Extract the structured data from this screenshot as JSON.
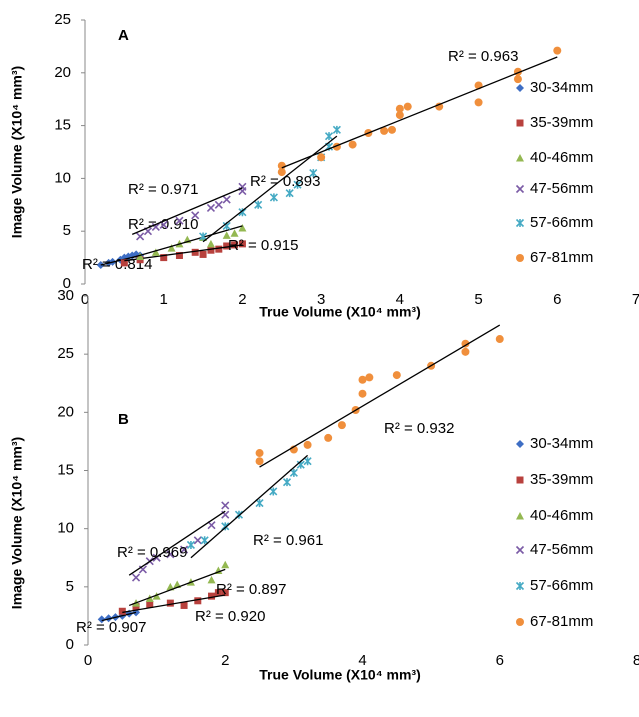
{
  "chart_data": [
    {
      "type": "scatter",
      "title": "A",
      "x_label": "True Volume (X10⁴ mm³)",
      "y_label": "Image Volume (X10⁴ mm³)",
      "xlim": [
        0,
        7
      ],
      "xticks": [
        0,
        1,
        2,
        3,
        4,
        5,
        6,
        7
      ],
      "ylim": [
        0,
        25
      ],
      "yticks": [
        0,
        5,
        10,
        15,
        20,
        25
      ],
      "grid": false,
      "legend": "right",
      "series": [
        {
          "name": "30-34mm",
          "color": "#3e6ec4",
          "marker": "diamond",
          "x": [
            0.2,
            0.3,
            0.35,
            0.45,
            0.5,
            0.55,
            0.6,
            0.65,
            0.7
          ],
          "y": [
            1.8,
            2.0,
            2.1,
            2.3,
            2.5,
            2.6,
            2.7,
            2.8,
            2.7
          ],
          "trendline": {
            "x": [
              0.2,
              0.7
            ],
            "y": [
              1.8,
              2.7
            ],
            "label": "R² = 0.814"
          }
        },
        {
          "name": "35-39mm",
          "color": "#b8413d",
          "marker": "square",
          "x": [
            0.5,
            0.7,
            1.0,
            1.2,
            1.4,
            1.5,
            1.6,
            1.7,
            1.8,
            1.9,
            2.0
          ],
          "y": [
            2.0,
            2.3,
            2.5,
            2.7,
            3.0,
            2.8,
            3.2,
            3.3,
            3.6,
            3.7,
            3.8
          ],
          "trendline": {
            "x": [
              0.5,
              2.0
            ],
            "y": [
              2.2,
              3.7
            ],
            "label": "R² = 0.915"
          }
        },
        {
          "name": "40-46mm",
          "color": "#94b852",
          "marker": "triangle",
          "x": [
            0.7,
            0.9,
            1.1,
            1.2,
            1.3,
            1.5,
            1.6,
            1.8,
            1.9,
            2.0
          ],
          "y": [
            2.6,
            3.0,
            3.4,
            3.8,
            4.2,
            4.4,
            3.8,
            4.6,
            4.8,
            5.3
          ],
          "trendline": {
            "x": [
              0.6,
              2.0
            ],
            "y": [
              2.5,
              5.5
            ],
            "label": "R² = 0.910"
          }
        },
        {
          "name": "47-56mm",
          "color": "#7b5ba6",
          "marker": "x",
          "x": [
            0.7,
            0.8,
            0.9,
            1.0,
            1.2,
            1.4,
            1.6,
            1.7,
            1.8,
            2.0,
            2.0
          ],
          "y": [
            4.5,
            5.0,
            5.4,
            5.6,
            6.0,
            6.5,
            7.2,
            7.5,
            8.0,
            8.8,
            9.2
          ],
          "trendline": {
            "x": [
              0.6,
              2.0
            ],
            "y": [
              4.7,
              9.1
            ],
            "label": "R² = 0.971"
          }
        },
        {
          "name": "57-66mm",
          "color": "#45aac4",
          "marker": "star",
          "x": [
            1.5,
            1.8,
            2.0,
            2.2,
            2.4,
            2.6,
            2.7,
            2.9,
            3.0,
            3.1,
            3.1,
            3.2
          ],
          "y": [
            4.5,
            5.5,
            6.8,
            7.5,
            8.2,
            8.6,
            9.4,
            10.5,
            12,
            13,
            14,
            14.6
          ],
          "trendline": {
            "x": [
              1.5,
              3.2
            ],
            "y": [
              4,
              14
            ],
            "label": "R² = 0.893"
          }
        },
        {
          "name": "67-81mm",
          "color": "#f08f3c",
          "marker": "circle",
          "x": [
            2.5,
            2.5,
            3.0,
            3.2,
            3.4,
            3.6,
            3.8,
            3.9,
            4.0,
            4.0,
            4.1,
            4.5,
            5.0,
            5.0,
            5.5,
            5.5,
            6.0
          ],
          "y": [
            10.6,
            11.2,
            12.0,
            13.0,
            13.2,
            14.3,
            14.5,
            14.6,
            16.0,
            16.6,
            16.8,
            16.8,
            17.2,
            18.8,
            19.4,
            20.1,
            22.1
          ],
          "trendline": {
            "x": [
              2.5,
              6.0
            ],
            "y": [
              11,
              21.5
            ],
            "label": "R² = 0.963"
          }
        }
      ]
    },
    {
      "type": "scatter",
      "title": "B",
      "x_label": "True Volume (X10⁴ mm³)",
      "y_label": "Image Volume (X10⁴ mm³)",
      "xlim": [
        0,
        8
      ],
      "xticks": [
        0,
        2,
        4,
        6,
        8
      ],
      "ylim": [
        0,
        30
      ],
      "yticks": [
        0,
        5,
        10,
        15,
        20,
        25,
        30
      ],
      "grid": false,
      "legend": "right",
      "series": [
        {
          "name": "30-34mm",
          "color": "#3e6ec4",
          "marker": "diamond",
          "x": [
            0.2,
            0.3,
            0.4,
            0.5,
            0.6,
            0.7
          ],
          "y": [
            2.2,
            2.3,
            2.4,
            2.5,
            2.7,
            2.8
          ],
          "trendline": {
            "x": [
              0.2,
              0.7
            ],
            "y": [
              2.1,
              2.8
            ],
            "label": "R² = 0.907"
          }
        },
        {
          "name": "35-39mm",
          "color": "#b8413d",
          "marker": "square",
          "x": [
            0.5,
            0.7,
            0.9,
            1.2,
            1.4,
            1.6,
            1.8,
            1.9,
            2.0
          ],
          "y": [
            2.9,
            3.3,
            3.5,
            3.6,
            3.4,
            3.8,
            4.2,
            4.5,
            4.5
          ],
          "trendline": {
            "x": [
              0.5,
              2.0
            ],
            "y": [
              2.8,
              4.3
            ],
            "label": "R² = 0.920"
          }
        },
        {
          "name": "40-46mm",
          "color": "#94b852",
          "marker": "triangle",
          "x": [
            0.7,
            0.9,
            1.0,
            1.2,
            1.3,
            1.5,
            1.8,
            1.9,
            2.0
          ],
          "y": [
            3.6,
            4.0,
            4.2,
            5.0,
            5.2,
            5.4,
            5.6,
            6.4,
            6.9
          ],
          "trendline": {
            "x": [
              0.6,
              2.0
            ],
            "y": [
              3.4,
              6.5
            ],
            "label": "R² = 0.897"
          }
        },
        {
          "name": "47-56mm",
          "color": "#7b5ba6",
          "marker": "x",
          "x": [
            0.7,
            0.8,
            0.9,
            1.0,
            1.2,
            1.4,
            1.6,
            1.8,
            2.0,
            2.0
          ],
          "y": [
            5.8,
            6.5,
            7.2,
            7.5,
            7.8,
            8.2,
            9.0,
            10.3,
            11.2,
            12.0
          ],
          "trendline": {
            "x": [
              0.6,
              2.0
            ],
            "y": [
              6,
              11.5
            ],
            "label": "R² = 0.969"
          }
        },
        {
          "name": "57-66mm",
          "color": "#45aac4",
          "marker": "star",
          "x": [
            1.5,
            1.7,
            2.0,
            2.2,
            2.5,
            2.7,
            2.9,
            3.0,
            3.1,
            3.2
          ],
          "y": [
            8.6,
            9.0,
            10.2,
            11.2,
            12.2,
            13.2,
            14.0,
            14.8,
            15.5,
            15.8
          ],
          "trendline": {
            "x": [
              1.5,
              3.2
            ],
            "y": [
              7.5,
              16.3
            ],
            "label": "R² = 0.961"
          }
        },
        {
          "name": "67-81mm",
          "color": "#f08f3c",
          "marker": "circle",
          "x": [
            2.5,
            2.5,
            3.0,
            3.2,
            3.5,
            3.7,
            3.9,
            4.0,
            4.0,
            4.1,
            4.5,
            5.0,
            5.5,
            5.5,
            6.0
          ],
          "y": [
            15.8,
            16.5,
            16.8,
            17.2,
            17.8,
            18.9,
            20.2,
            21.6,
            22.8,
            23.0,
            23.2,
            24.0,
            25.2,
            25.9,
            26.3
          ],
          "trendline": {
            "x": [
              2.5,
              6.0
            ],
            "y": [
              15.3,
              27.5
            ],
            "label": "R² = 0.932"
          }
        }
      ]
    }
  ]
}
